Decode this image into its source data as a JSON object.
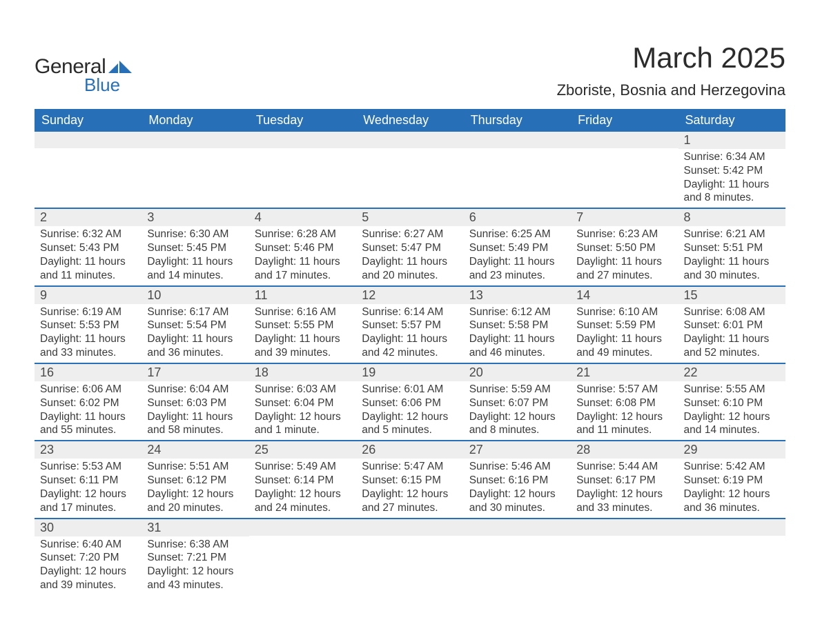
{
  "brand": {
    "text_general": "General",
    "text_blue": "Blue",
    "flag_color": "#2770b8"
  },
  "header": {
    "month_title": "March 2025",
    "location": "Zboriste, Bosnia and Herzegovina"
  },
  "calendar": {
    "header_bg": "#2770b8",
    "header_fg": "#ffffff",
    "row_divider_color": "#2770b8",
    "daynum_bg": "#eeeeee",
    "text_color": "#3a3a3a",
    "day_names": [
      "Sunday",
      "Monday",
      "Tuesday",
      "Wednesday",
      "Thursday",
      "Friday",
      "Saturday"
    ],
    "weeks": [
      [
        {
          "day": "",
          "sunrise": "",
          "sunset": "",
          "daylight": ""
        },
        {
          "day": "",
          "sunrise": "",
          "sunset": "",
          "daylight": ""
        },
        {
          "day": "",
          "sunrise": "",
          "sunset": "",
          "daylight": ""
        },
        {
          "day": "",
          "sunrise": "",
          "sunset": "",
          "daylight": ""
        },
        {
          "day": "",
          "sunrise": "",
          "sunset": "",
          "daylight": ""
        },
        {
          "day": "",
          "sunrise": "",
          "sunset": "",
          "daylight": ""
        },
        {
          "day": "1",
          "sunrise": "Sunrise: 6:34 AM",
          "sunset": "Sunset: 5:42 PM",
          "daylight": "Daylight: 11 hours and 8 minutes."
        }
      ],
      [
        {
          "day": "2",
          "sunrise": "Sunrise: 6:32 AM",
          "sunset": "Sunset: 5:43 PM",
          "daylight": "Daylight: 11 hours and 11 minutes."
        },
        {
          "day": "3",
          "sunrise": "Sunrise: 6:30 AM",
          "sunset": "Sunset: 5:45 PM",
          "daylight": "Daylight: 11 hours and 14 minutes."
        },
        {
          "day": "4",
          "sunrise": "Sunrise: 6:28 AM",
          "sunset": "Sunset: 5:46 PM",
          "daylight": "Daylight: 11 hours and 17 minutes."
        },
        {
          "day": "5",
          "sunrise": "Sunrise: 6:27 AM",
          "sunset": "Sunset: 5:47 PM",
          "daylight": "Daylight: 11 hours and 20 minutes."
        },
        {
          "day": "6",
          "sunrise": "Sunrise: 6:25 AM",
          "sunset": "Sunset: 5:49 PM",
          "daylight": "Daylight: 11 hours and 23 minutes."
        },
        {
          "day": "7",
          "sunrise": "Sunrise: 6:23 AM",
          "sunset": "Sunset: 5:50 PM",
          "daylight": "Daylight: 11 hours and 27 minutes."
        },
        {
          "day": "8",
          "sunrise": "Sunrise: 6:21 AM",
          "sunset": "Sunset: 5:51 PM",
          "daylight": "Daylight: 11 hours and 30 minutes."
        }
      ],
      [
        {
          "day": "9",
          "sunrise": "Sunrise: 6:19 AM",
          "sunset": "Sunset: 5:53 PM",
          "daylight": "Daylight: 11 hours and 33 minutes."
        },
        {
          "day": "10",
          "sunrise": "Sunrise: 6:17 AM",
          "sunset": "Sunset: 5:54 PM",
          "daylight": "Daylight: 11 hours and 36 minutes."
        },
        {
          "day": "11",
          "sunrise": "Sunrise: 6:16 AM",
          "sunset": "Sunset: 5:55 PM",
          "daylight": "Daylight: 11 hours and 39 minutes."
        },
        {
          "day": "12",
          "sunrise": "Sunrise: 6:14 AM",
          "sunset": "Sunset: 5:57 PM",
          "daylight": "Daylight: 11 hours and 42 minutes."
        },
        {
          "day": "13",
          "sunrise": "Sunrise: 6:12 AM",
          "sunset": "Sunset: 5:58 PM",
          "daylight": "Daylight: 11 hours and 46 minutes."
        },
        {
          "day": "14",
          "sunrise": "Sunrise: 6:10 AM",
          "sunset": "Sunset: 5:59 PM",
          "daylight": "Daylight: 11 hours and 49 minutes."
        },
        {
          "day": "15",
          "sunrise": "Sunrise: 6:08 AM",
          "sunset": "Sunset: 6:01 PM",
          "daylight": "Daylight: 11 hours and 52 minutes."
        }
      ],
      [
        {
          "day": "16",
          "sunrise": "Sunrise: 6:06 AM",
          "sunset": "Sunset: 6:02 PM",
          "daylight": "Daylight: 11 hours and 55 minutes."
        },
        {
          "day": "17",
          "sunrise": "Sunrise: 6:04 AM",
          "sunset": "Sunset: 6:03 PM",
          "daylight": "Daylight: 11 hours and 58 minutes."
        },
        {
          "day": "18",
          "sunrise": "Sunrise: 6:03 AM",
          "sunset": "Sunset: 6:04 PM",
          "daylight": "Daylight: 12 hours and 1 minute."
        },
        {
          "day": "19",
          "sunrise": "Sunrise: 6:01 AM",
          "sunset": "Sunset: 6:06 PM",
          "daylight": "Daylight: 12 hours and 5 minutes."
        },
        {
          "day": "20",
          "sunrise": "Sunrise: 5:59 AM",
          "sunset": "Sunset: 6:07 PM",
          "daylight": "Daylight: 12 hours and 8 minutes."
        },
        {
          "day": "21",
          "sunrise": "Sunrise: 5:57 AM",
          "sunset": "Sunset: 6:08 PM",
          "daylight": "Daylight: 12 hours and 11 minutes."
        },
        {
          "day": "22",
          "sunrise": "Sunrise: 5:55 AM",
          "sunset": "Sunset: 6:10 PM",
          "daylight": "Daylight: 12 hours and 14 minutes."
        }
      ],
      [
        {
          "day": "23",
          "sunrise": "Sunrise: 5:53 AM",
          "sunset": "Sunset: 6:11 PM",
          "daylight": "Daylight: 12 hours and 17 minutes."
        },
        {
          "day": "24",
          "sunrise": "Sunrise: 5:51 AM",
          "sunset": "Sunset: 6:12 PM",
          "daylight": "Daylight: 12 hours and 20 minutes."
        },
        {
          "day": "25",
          "sunrise": "Sunrise: 5:49 AM",
          "sunset": "Sunset: 6:14 PM",
          "daylight": "Daylight: 12 hours and 24 minutes."
        },
        {
          "day": "26",
          "sunrise": "Sunrise: 5:47 AM",
          "sunset": "Sunset: 6:15 PM",
          "daylight": "Daylight: 12 hours and 27 minutes."
        },
        {
          "day": "27",
          "sunrise": "Sunrise: 5:46 AM",
          "sunset": "Sunset: 6:16 PM",
          "daylight": "Daylight: 12 hours and 30 minutes."
        },
        {
          "day": "28",
          "sunrise": "Sunrise: 5:44 AM",
          "sunset": "Sunset: 6:17 PM",
          "daylight": "Daylight: 12 hours and 33 minutes."
        },
        {
          "day": "29",
          "sunrise": "Sunrise: 5:42 AM",
          "sunset": "Sunset: 6:19 PM",
          "daylight": "Daylight: 12 hours and 36 minutes."
        }
      ],
      [
        {
          "day": "30",
          "sunrise": "Sunrise: 6:40 AM",
          "sunset": "Sunset: 7:20 PM",
          "daylight": "Daylight: 12 hours and 39 minutes."
        },
        {
          "day": "31",
          "sunrise": "Sunrise: 6:38 AM",
          "sunset": "Sunset: 7:21 PM",
          "daylight": "Daylight: 12 hours and 43 minutes."
        },
        {
          "day": "",
          "sunrise": "",
          "sunset": "",
          "daylight": ""
        },
        {
          "day": "",
          "sunrise": "",
          "sunset": "",
          "daylight": ""
        },
        {
          "day": "",
          "sunrise": "",
          "sunset": "",
          "daylight": ""
        },
        {
          "day": "",
          "sunrise": "",
          "sunset": "",
          "daylight": ""
        },
        {
          "day": "",
          "sunrise": "",
          "sunset": "",
          "daylight": ""
        }
      ]
    ]
  }
}
